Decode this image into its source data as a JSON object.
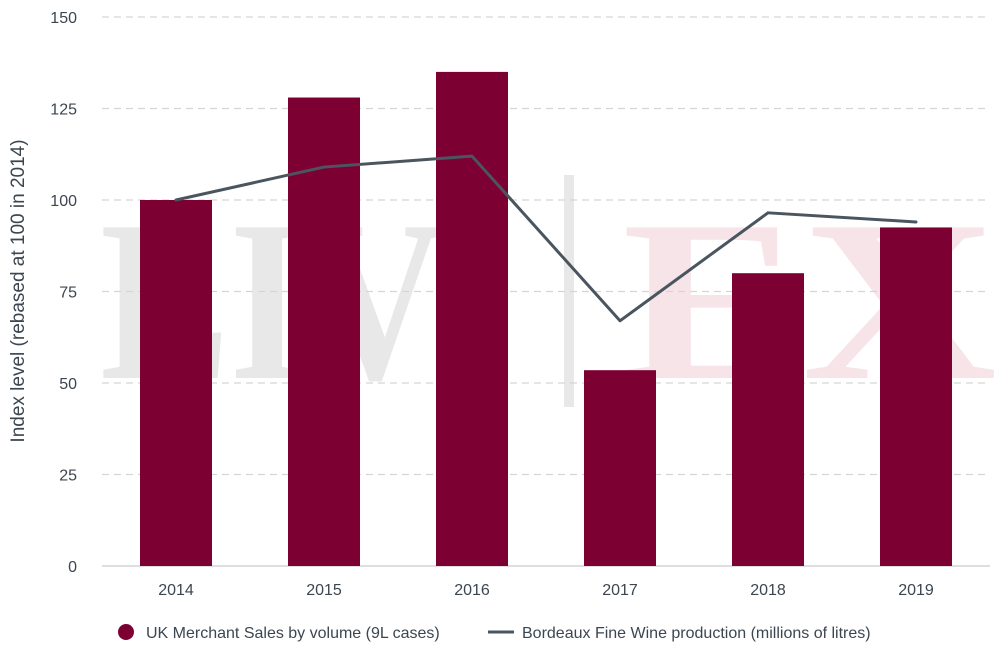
{
  "chart_data": {
    "type": "bar",
    "title": "",
    "xlabel": "",
    "ylabel": "Index level (rebased at 100 in 2014)",
    "ylim": [
      0,
      150
    ],
    "yticks": [
      0,
      25,
      50,
      75,
      100,
      125,
      150
    ],
    "grid": true,
    "categories": [
      "2014",
      "2015",
      "2016",
      "2017",
      "2018",
      "2019"
    ],
    "series": [
      {
        "name": "UK Merchant Sales by volume (9L cases)",
        "kind": "bar",
        "color": "#7d0032",
        "values": [
          100,
          128,
          135,
          53.5,
          80,
          92.5
        ]
      },
      {
        "name": "Bordeaux Fine Wine production (millions of litres)",
        "kind": "line",
        "color": "#4a555f",
        "values": [
          100,
          109,
          112,
          67,
          96.5,
          94
        ]
      }
    ],
    "legend_position": "bottom"
  },
  "watermark": {
    "left": "LIV",
    "right": "EX"
  },
  "colors": {
    "bar": "#7d0032",
    "line": "#4a555f",
    "grid": "#d5d5d5",
    "axis_text": "#3c4650",
    "watermark_left": "#e8e8e8",
    "watermark_right": "#f6e4e9"
  }
}
